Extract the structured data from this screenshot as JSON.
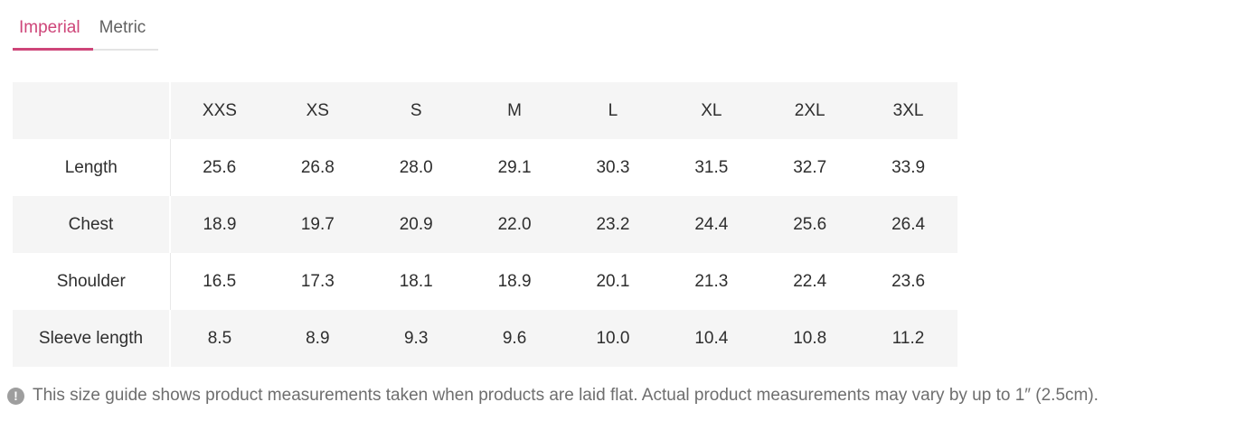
{
  "tabs": [
    {
      "label": "Imperial",
      "active": true
    },
    {
      "label": "Metric",
      "active": false
    }
  ],
  "table": {
    "corner": "",
    "columns": [
      "XXS",
      "XS",
      "S",
      "M",
      "L",
      "XL",
      "2XL",
      "3XL"
    ],
    "rows": [
      {
        "label": "Length",
        "values": [
          "25.6",
          "26.8",
          "28.0",
          "29.1",
          "30.3",
          "31.5",
          "32.7",
          "33.9"
        ]
      },
      {
        "label": "Chest",
        "values": [
          "18.9",
          "19.7",
          "20.9",
          "22.0",
          "23.2",
          "24.4",
          "25.6",
          "26.4"
        ]
      },
      {
        "label": "Shoulder",
        "values": [
          "16.5",
          "17.3",
          "18.1",
          "18.9",
          "20.1",
          "21.3",
          "22.4",
          "23.6"
        ]
      },
      {
        "label": "Sleeve length",
        "values": [
          "8.5",
          "8.9",
          "9.3",
          "9.6",
          "10.0",
          "10.4",
          "10.8",
          "11.2"
        ]
      }
    ]
  },
  "note": {
    "icon": "exclamation-circle-icon",
    "icon_glyph": "!",
    "text": "This size guide shows product measurements taken when products are laid flat. Actual product measurements may vary by up to 1″ (2.5cm)."
  },
  "colors": {
    "accent": "#ce4579",
    "row_stripe": "#f5f5f5",
    "text_dark": "#2e2e2e",
    "text_muted": "#6e6e6e"
  }
}
